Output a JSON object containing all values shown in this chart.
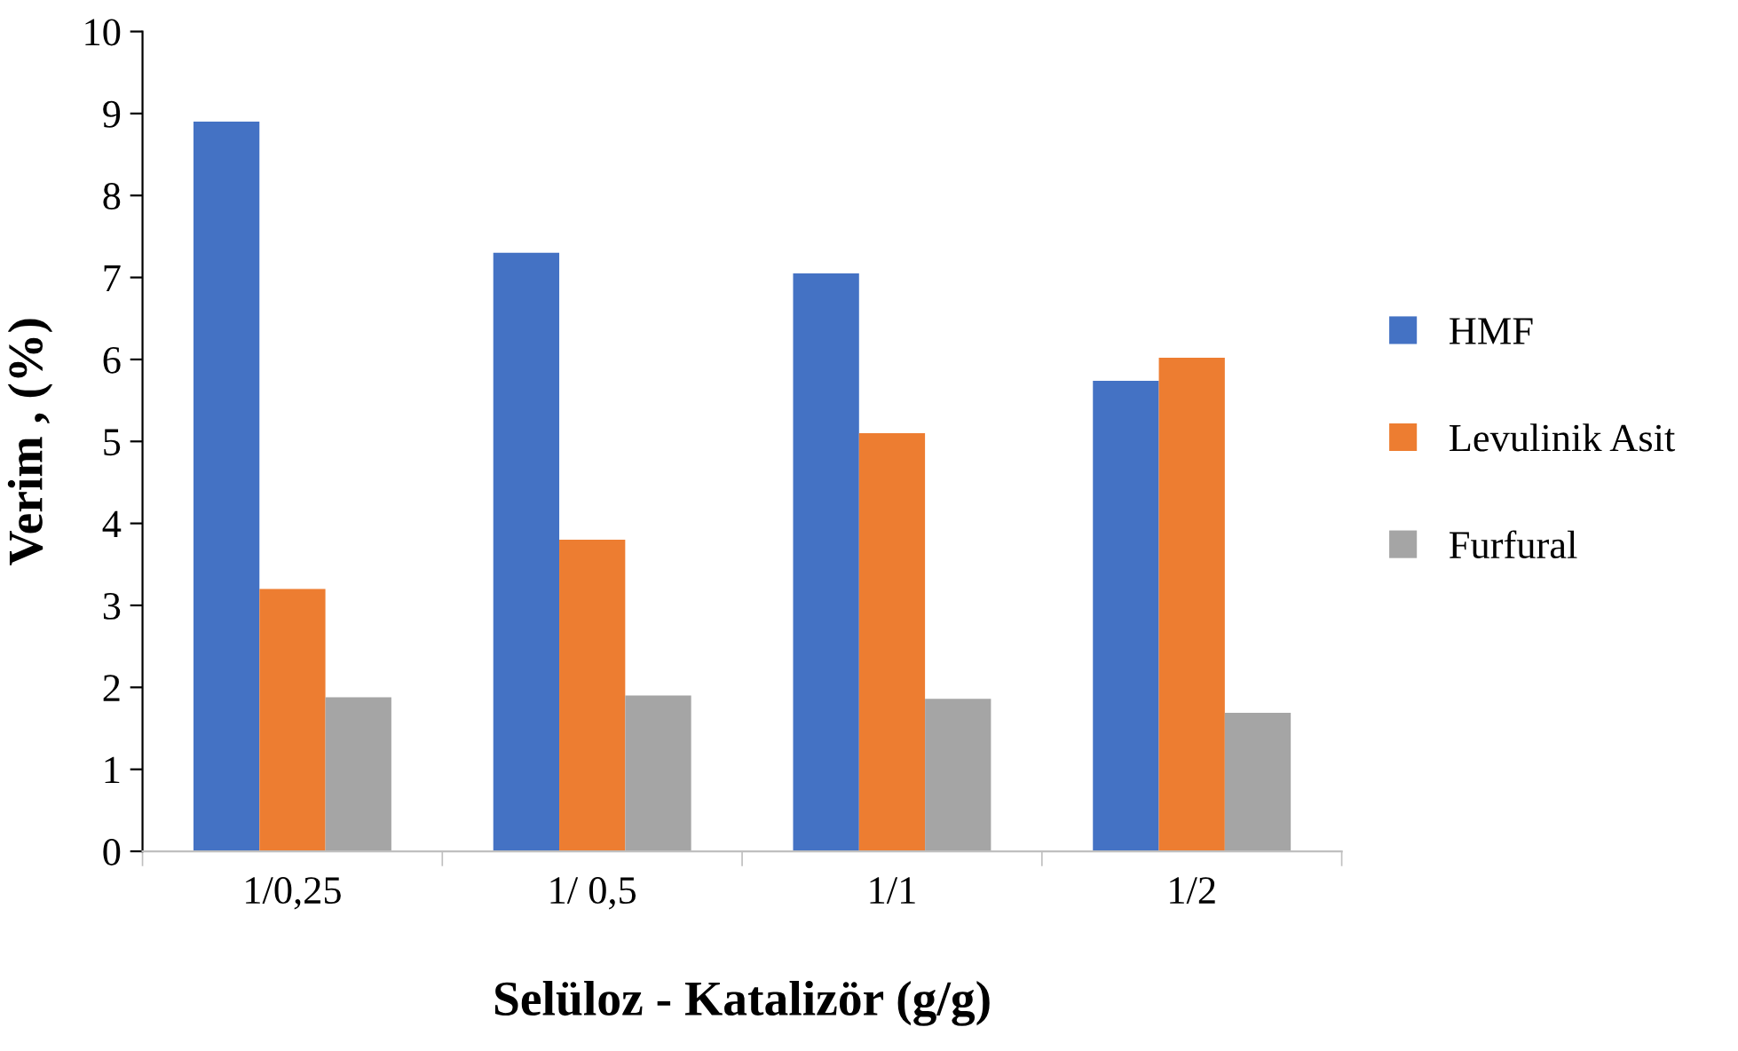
{
  "chart_data": {
    "type": "bar",
    "xlabel": "Selüloz - Katalizör (g/g)",
    "ylabel": "Verim , (%)",
    "categories": [
      "1/0,25",
      "1/ 0,5",
      "1/1",
      "1/2"
    ],
    "series": [
      {
        "name": "HMF",
        "color": "#4472c4",
        "values": [
          8.9,
          7.3,
          7.05,
          5.74
        ]
      },
      {
        "name": "Levulinik Asit",
        "color": "#ed7d31",
        "values": [
          3.2,
          3.8,
          5.1,
          6.02
        ]
      },
      {
        "name": "Furfural",
        "color": "#a5a5a5",
        "values": [
          1.88,
          1.9,
          1.86,
          1.69
        ]
      }
    ],
    "ylim": [
      0,
      10
    ],
    "yticks": [
      0,
      1,
      2,
      3,
      4,
      5,
      6,
      7,
      8,
      9,
      10
    ],
    "grid": false,
    "legend": "right"
  }
}
